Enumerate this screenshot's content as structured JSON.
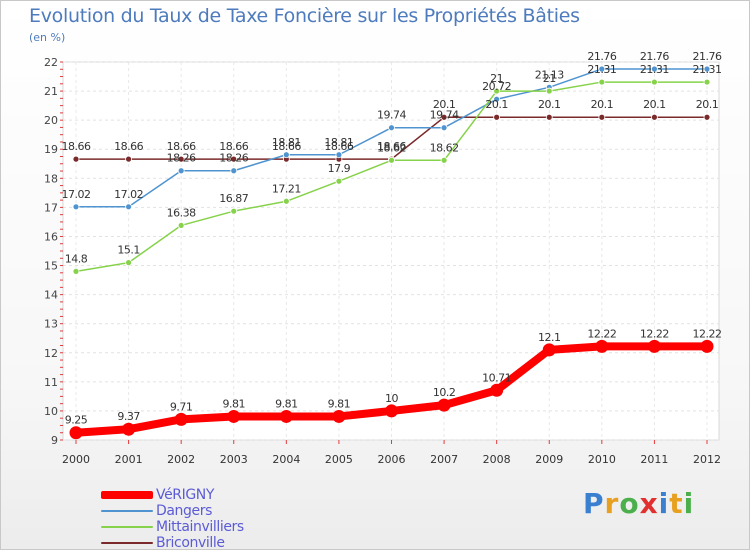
{
  "chart_data": {
    "type": "line",
    "title": "Evolution du Taux de Taxe Foncière sur les Propriétés Bâties",
    "unit_label": "(en %)",
    "xlabel": "",
    "ylabel": "",
    "categories": [
      "2000",
      "2001",
      "2002",
      "2003",
      "2004",
      "2005",
      "2006",
      "2007",
      "2008",
      "2009",
      "2010",
      "2011",
      "2012"
    ],
    "ylim": [
      9,
      22
    ],
    "yticks": [
      9,
      10,
      11,
      12,
      13,
      14,
      15,
      16,
      17,
      18,
      19,
      20,
      21,
      22
    ],
    "grid": true,
    "legend_position": "bottom-left",
    "series": [
      {
        "name": "VéRIGNY",
        "color": "#ff0000",
        "values": [
          9.25,
          9.37,
          9.71,
          9.81,
          9.81,
          9.81,
          10,
          10.2,
          10.71,
          12.1,
          12.22,
          12.22,
          12.22
        ]
      },
      {
        "name": "Dangers",
        "color": "#4f94d0",
        "values": [
          17.02,
          17.02,
          18.26,
          18.26,
          18.81,
          18.81,
          19.74,
          19.74,
          20.72,
          21.13,
          21.76,
          21.76,
          21.76
        ]
      },
      {
        "name": "Mittainvilliers",
        "color": "#86d24a",
        "values": [
          14.8,
          15.1,
          16.38,
          16.87,
          17.21,
          17.9,
          18.62,
          18.62,
          21,
          21,
          21.31,
          21.31,
          21.31
        ]
      },
      {
        "name": "Briconville",
        "color": "#7a2a2a",
        "values": [
          18.66,
          18.66,
          18.66,
          18.66,
          18.66,
          18.66,
          18.66,
          20.1,
          20.1,
          20.1,
          20.1,
          20.1,
          20.1
        ]
      }
    ]
  },
  "logo": {
    "letters": [
      "P",
      "r",
      "o",
      "x",
      "i",
      "t",
      "i"
    ],
    "colors": [
      "#3a7fd0",
      "#e8a020",
      "#4bb04b",
      "#e03030",
      "#3a7fd0",
      "#e8a020",
      "#4bb04b"
    ]
  }
}
